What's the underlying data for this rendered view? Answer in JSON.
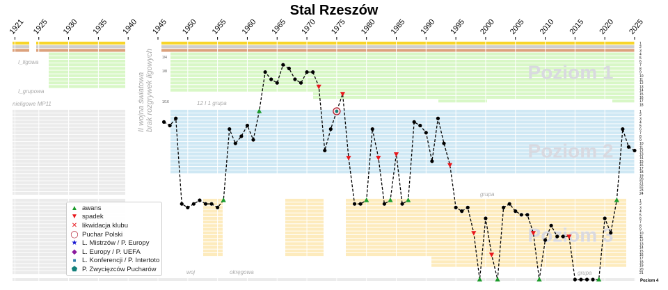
{
  "chart_data": {
    "type": "line",
    "title": "Stal Rzeszów",
    "xlabel": "",
    "ylabel": "",
    "xlim": [
      1921,
      2025
    ],
    "x_ticks": [
      1921,
      1925,
      1930,
      1935,
      1940,
      1945,
      1950,
      1955,
      1960,
      1965,
      1970,
      1975,
      1980,
      1985,
      1990,
      1995,
      2000,
      2005,
      2010,
      2015,
      2020,
      2025
    ],
    "levels": [
      {
        "name": "Poziom 1",
        "rows": 18
      },
      {
        "name": "Poziom 2",
        "rows": 24
      },
      {
        "name": "Poziom 3",
        "rows": 21
      },
      {
        "name": "Poziom 4",
        "rows": 1
      }
    ],
    "series": [
      {
        "year": 1946,
        "level": 2,
        "pos": 4,
        "marker": "dot"
      },
      {
        "year": 1947,
        "level": 2,
        "pos": 5,
        "marker": "dot"
      },
      {
        "year": 1948,
        "level": 2,
        "pos": 3,
        "marker": "dot"
      },
      {
        "year": 1949,
        "level": 3,
        "pos": 2,
        "marker": "dot"
      },
      {
        "year": 1950,
        "level": 3,
        "pos": 3,
        "marker": "dot"
      },
      {
        "year": 1951,
        "level": 3,
        "pos": 2,
        "marker": "dot"
      },
      {
        "year": 1952,
        "level": 3,
        "pos": 1,
        "marker": "dot"
      },
      {
        "year": 1953,
        "level": 3,
        "pos": 2,
        "marker": "dot"
      },
      {
        "year": 1954,
        "level": 3,
        "pos": 2,
        "marker": "dot"
      },
      {
        "year": 1955,
        "level": 3,
        "pos": 3,
        "marker": "dot"
      },
      {
        "year": 1956,
        "level": 3,
        "pos": 1,
        "marker": "awans"
      },
      {
        "year": 1957,
        "level": 2,
        "pos": 6,
        "marker": "dot"
      },
      {
        "year": 1958,
        "level": 2,
        "pos": 10,
        "marker": "dot"
      },
      {
        "year": 1959,
        "level": 2,
        "pos": 8,
        "marker": "dot"
      },
      {
        "year": 1960,
        "level": 2,
        "pos": 5,
        "marker": "dot"
      },
      {
        "year": 1961,
        "level": 2,
        "pos": 9,
        "marker": "dot"
      },
      {
        "year": 1962,
        "level": 2,
        "pos": 1,
        "marker": "awans"
      },
      {
        "year": 1963,
        "level": 1,
        "pos": 9,
        "marker": "dot"
      },
      {
        "year": 1964,
        "level": 1,
        "pos": 11,
        "marker": "dot"
      },
      {
        "year": 1965,
        "level": 1,
        "pos": 12,
        "marker": "dot"
      },
      {
        "year": 1966,
        "level": 1,
        "pos": 7,
        "marker": "dot"
      },
      {
        "year": 1967,
        "level": 1,
        "pos": 8,
        "marker": "dot"
      },
      {
        "year": 1968,
        "level": 1,
        "pos": 11,
        "marker": "dot"
      },
      {
        "year": 1969,
        "level": 1,
        "pos": 12,
        "marker": "dot"
      },
      {
        "year": 1970,
        "level": 1,
        "pos": 9,
        "marker": "dot"
      },
      {
        "year": 1971,
        "level": 1,
        "pos": 9,
        "marker": "dot"
      },
      {
        "year": 1972,
        "level": 1,
        "pos": 13,
        "marker": "spadek"
      },
      {
        "year": 1973,
        "level": 2,
        "pos": 12,
        "marker": "dot"
      },
      {
        "year": 1974,
        "level": 2,
        "pos": 6,
        "marker": "dot"
      },
      {
        "year": 1975,
        "level": 2,
        "pos": 1,
        "marker": "puchar"
      },
      {
        "year": 1976,
        "level": 1,
        "pos": 15,
        "marker": "spadek"
      },
      {
        "year": 1977,
        "level": 2,
        "pos": 14,
        "marker": "spadek"
      },
      {
        "year": 1978,
        "level": 3,
        "pos": 2,
        "marker": "dot"
      },
      {
        "year": 1979,
        "level": 3,
        "pos": 2,
        "marker": "dot"
      },
      {
        "year": 1980,
        "level": 3,
        "pos": 1,
        "marker": "awans"
      },
      {
        "year": 1981,
        "level": 2,
        "pos": 6,
        "marker": "dot"
      },
      {
        "year": 1982,
        "level": 2,
        "pos": 14,
        "marker": "spadek"
      },
      {
        "year": 1983,
        "level": 3,
        "pos": 2,
        "marker": "dot"
      },
      {
        "year": 1984,
        "level": 3,
        "pos": 1,
        "marker": "awans"
      },
      {
        "year": 1985,
        "level": 2,
        "pos": 13,
        "marker": "spadek"
      },
      {
        "year": 1986,
        "level": 3,
        "pos": 2,
        "marker": "dot"
      },
      {
        "year": 1987,
        "level": 3,
        "pos": 1,
        "marker": "awans"
      },
      {
        "year": 1988,
        "level": 2,
        "pos": 4,
        "marker": "dot"
      },
      {
        "year": 1989,
        "level": 2,
        "pos": 5,
        "marker": "dot"
      },
      {
        "year": 1990,
        "level": 2,
        "pos": 7,
        "marker": "dot"
      },
      {
        "year": 1991,
        "level": 2,
        "pos": 15,
        "marker": "dot"
      },
      {
        "year": 1992,
        "level": 2,
        "pos": 3,
        "marker": "dot"
      },
      {
        "year": 1993,
        "level": 2,
        "pos": 10,
        "marker": "dot"
      },
      {
        "year": 1994,
        "level": 2,
        "pos": 16,
        "marker": "spadek"
      },
      {
        "year": 1995,
        "level": 3,
        "pos": 3,
        "marker": "dot"
      },
      {
        "year": 1996,
        "level": 3,
        "pos": 4,
        "marker": "dot"
      },
      {
        "year": 1997,
        "level": 3,
        "pos": 3,
        "marker": "dot"
      },
      {
        "year": 1998,
        "level": 3,
        "pos": 10,
        "marker": "spadek"
      },
      {
        "year": 1999,
        "level": 4,
        "pos": 1,
        "marker": "awans"
      },
      {
        "year": 2000,
        "level": 3,
        "pos": 6,
        "marker": "dot"
      },
      {
        "year": 2001,
        "level": 3,
        "pos": 16,
        "marker": "spadek"
      },
      {
        "year": 2002,
        "level": 4,
        "pos": 1,
        "marker": "awans"
      },
      {
        "year": 2003,
        "level": 3,
        "pos": 3,
        "marker": "dot"
      },
      {
        "year": 2004,
        "level": 3,
        "pos": 2,
        "marker": "dot"
      },
      {
        "year": 2005,
        "level": 3,
        "pos": 4,
        "marker": "dot"
      },
      {
        "year": 2006,
        "level": 3,
        "pos": 5,
        "marker": "dot"
      },
      {
        "year": 2007,
        "level": 3,
        "pos": 5,
        "marker": "dot"
      },
      {
        "year": 2008,
        "level": 3,
        "pos": 10,
        "marker": "spadek"
      },
      {
        "year": 2009,
        "level": 4,
        "pos": 1,
        "marker": "awans"
      },
      {
        "year": 2010,
        "level": 3,
        "pos": 12,
        "marker": "dot"
      },
      {
        "year": 2011,
        "level": 3,
        "pos": 8,
        "marker": "dot"
      },
      {
        "year": 2012,
        "level": 3,
        "pos": 11,
        "marker": "dot"
      },
      {
        "year": 2013,
        "level": 3,
        "pos": 11,
        "marker": "dot"
      },
      {
        "year": 2014,
        "level": 3,
        "pos": 11,
        "marker": "spadek"
      },
      {
        "year": 2015,
        "level": 4,
        "pos": 1,
        "marker": "dot"
      },
      {
        "year": 2016,
        "level": 4,
        "pos": 1,
        "marker": "dot"
      },
      {
        "year": 2017,
        "level": 4,
        "pos": 1,
        "marker": "dot"
      },
      {
        "year": 2018,
        "level": 4,
        "pos": 1,
        "marker": "dot"
      },
      {
        "year": 2019,
        "level": 4,
        "pos": 1,
        "marker": "awans"
      },
      {
        "year": 2020,
        "level": 3,
        "pos": 6,
        "marker": "dot"
      },
      {
        "year": 2021,
        "level": 3,
        "pos": 10,
        "marker": "dot"
      },
      {
        "year": 2022,
        "level": 3,
        "pos": 1,
        "marker": "awans"
      },
      {
        "year": 2023,
        "level": 2,
        "pos": 6,
        "marker": "dot"
      },
      {
        "year": 2024,
        "level": 2,
        "pos": 11,
        "marker": "dot"
      },
      {
        "year": 2025,
        "level": 2,
        "pos": 12,
        "marker": "dot"
      }
    ],
    "annotations": {
      "war_line1": "II wojna światowa",
      "war_line2": "brak rozgrywek ligowych",
      "i_ligowa": "I_ligowa",
      "i_grupowa": "I_grupowa",
      "nieligowe": "nieligowe MP11",
      "frac_1_4": "1/4",
      "frac_1_8": "1/8",
      "frac_1_16": "1/16",
      "grupa_1": "12 I 1 grupa",
      "grupa_2": "grupa",
      "grupa_3": "grupa",
      "woj": "woj",
      "okregowa": "okręgowa"
    },
    "colors": {
      "gold": "#f7d52b",
      "silver": "#cfcfcf",
      "bronze": "#dca27c",
      "level1": "#d8f7c6",
      "level2": "#cfe8f4",
      "level3": "#fdebbd",
      "prewar": "#ebebeb",
      "awans": "#1a9b2a",
      "spadek": "#e8161b",
      "puchar": "#b0182a",
      "watermark": "#d9d9e0"
    },
    "legend": [
      {
        "icon": "triangle-up",
        "label": "awans",
        "color": "#1a9b2a"
      },
      {
        "icon": "triangle-down",
        "label": "spadek",
        "color": "#e8161b"
      },
      {
        "icon": "cross",
        "label": "likwidacja klubu",
        "color": "#e8161b"
      },
      {
        "icon": "circle",
        "label": "Puchar Polski",
        "color": "#b0182a"
      },
      {
        "icon": "star",
        "label": "L. Mistrzów / P. Europy",
        "color": "#1414d0"
      },
      {
        "icon": "diamond",
        "label": "L. Europy / P. UEFA",
        "color": "#8b1a9e"
      },
      {
        "icon": "square",
        "label": "L. Konferencji / P. Intertoto",
        "color": "#2f7fa8"
      },
      {
        "icon": "pentagon",
        "label": "P. Zwycięzców Pucharów",
        "color": "#137f7a"
      }
    ]
  }
}
